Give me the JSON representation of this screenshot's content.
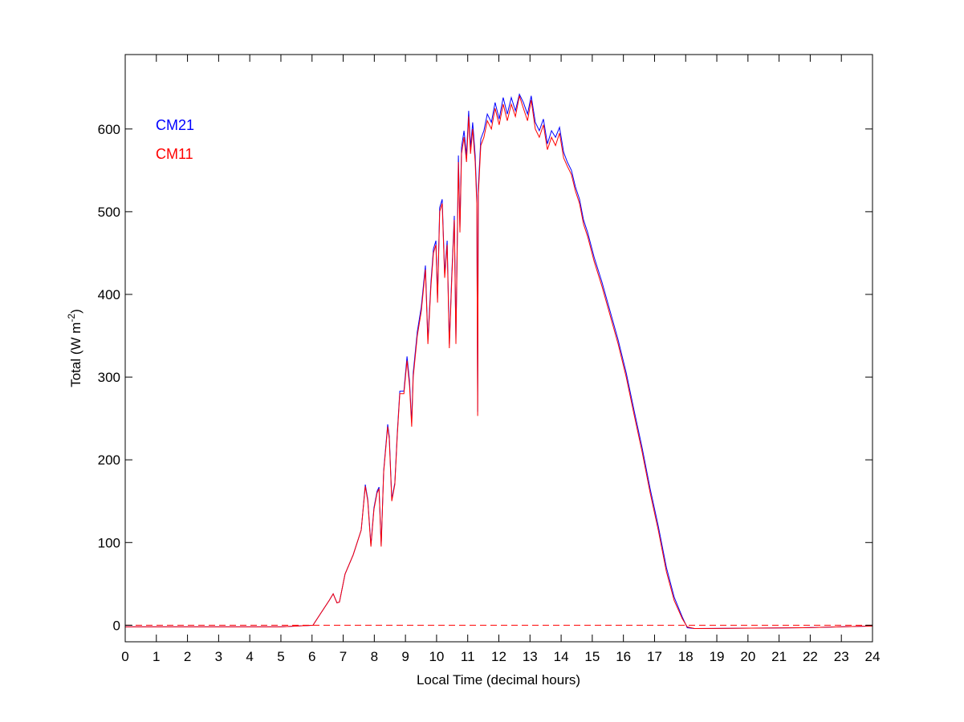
{
  "chart_data": {
    "type": "line",
    "title": "",
    "xlabel": "Local Time (decimal hours)",
    "ylabel_main": "Total (W m",
    "ylabel_sup": "-2",
    "ylabel_close": ")",
    "xlim": [
      0,
      24
    ],
    "ylim": [
      -20,
      690
    ],
    "grid": false,
    "legend_placement": "top-left",
    "x_ticks": [
      "0",
      "1",
      "2",
      "3",
      "4",
      "5",
      "6",
      "7",
      "8",
      "9",
      "10",
      "11",
      "12",
      "13",
      "14",
      "15",
      "16",
      "17",
      "18",
      "19",
      "20",
      "21",
      "22",
      "23",
      "24"
    ],
    "y_ticks": [
      "0",
      "100",
      "200",
      "300",
      "400",
      "500",
      "600"
    ],
    "reference_line": {
      "y": 0,
      "style": "dashed",
      "color": "#ff0000"
    },
    "x": [
      0,
      5,
      6.03,
      6.29,
      6.55,
      6.68,
      6.8,
      6.88,
      7.06,
      7.32,
      7.58,
      7.71,
      7.79,
      7.89,
      7.99,
      8.09,
      8.15,
      8.22,
      8.3,
      8.43,
      8.48,
      8.56,
      8.66,
      8.74,
      8.82,
      8.95,
      9.05,
      9.13,
      9.2,
      9.25,
      9.38,
      9.51,
      9.64,
      9.72,
      9.82,
      9.9,
      9.98,
      10.03,
      10.1,
      10.18,
      10.26,
      10.34,
      10.41,
      10.49,
      10.57,
      10.62,
      10.7,
      10.75,
      10.8,
      10.88,
      10.96,
      11.03,
      11.09,
      11.16,
      11.24,
      11.29,
      11.32,
      11.34,
      11.42,
      11.52,
      11.63,
      11.76,
      11.88,
      12.01,
      12.14,
      12.27,
      12.4,
      12.53,
      12.66,
      12.79,
      12.92,
      13.04,
      13.17,
      13.3,
      13.43,
      13.56,
      13.69,
      13.82,
      13.95,
      14.08,
      14.2,
      14.33,
      14.46,
      14.59,
      14.72,
      14.85,
      15.06,
      15.31,
      15.57,
      15.83,
      16.09,
      16.34,
      16.6,
      16.86,
      17.12,
      17.38,
      17.63,
      17.89,
      18.05,
      18.28,
      21.76,
      24
    ],
    "series": [
      {
        "name": "CM21",
        "color": "#0000ff",
        "values": [
          -2,
          -2,
          0,
          15,
          30,
          38,
          27,
          28,
          62,
          85,
          115,
          170,
          152,
          97,
          142,
          162,
          167,
          97,
          187,
          243,
          228,
          152,
          172,
          233,
          283,
          283,
          325,
          295,
          245,
          305,
          355,
          385,
          435,
          345,
          415,
          455,
          465,
          395,
          505,
          515,
          425,
          465,
          340,
          425,
          495,
          345,
          568,
          480,
          578,
          598,
          568,
          622,
          578,
          608,
          568,
          518,
          258,
          528,
          588,
          598,
          618,
          608,
          632,
          612,
          638,
          618,
          638,
          622,
          642,
          632,
          618,
          640,
          608,
          598,
          612,
          582,
          598,
          590,
          602,
          572,
          560,
          550,
          530,
          515,
          490,
          475,
          445,
          415,
          380,
          345,
          305,
          260,
          215,
          165,
          120,
          70,
          34,
          10,
          -3,
          -4,
          -3,
          -1
        ]
      },
      {
        "name": "CM11",
        "color": "#ff0000",
        "values": [
          -2,
          -2,
          0,
          15,
          30,
          38,
          27,
          28,
          62,
          85,
          115,
          168,
          150,
          95,
          140,
          160,
          165,
          95,
          185,
          240,
          225,
          150,
          170,
          230,
          280,
          280,
          320,
          290,
          240,
          300,
          350,
          380,
          430,
          340,
          410,
          450,
          460,
          390,
          500,
          510,
          420,
          460,
          335,
          420,
          490,
          340,
          560,
          475,
          570,
          590,
          560,
          615,
          570,
          600,
          560,
          510,
          253,
          520,
          580,
          590,
          610,
          600,
          625,
          605,
          630,
          610,
          630,
          615,
          640,
          625,
          610,
          635,
          600,
          590,
          605,
          575,
          590,
          580,
          595,
          565,
          555,
          545,
          525,
          510,
          485,
          470,
          440,
          410,
          375,
          340,
          300,
          255,
          210,
          160,
          115,
          65,
          30,
          8,
          -2,
          -4,
          -3,
          -1
        ]
      }
    ]
  }
}
